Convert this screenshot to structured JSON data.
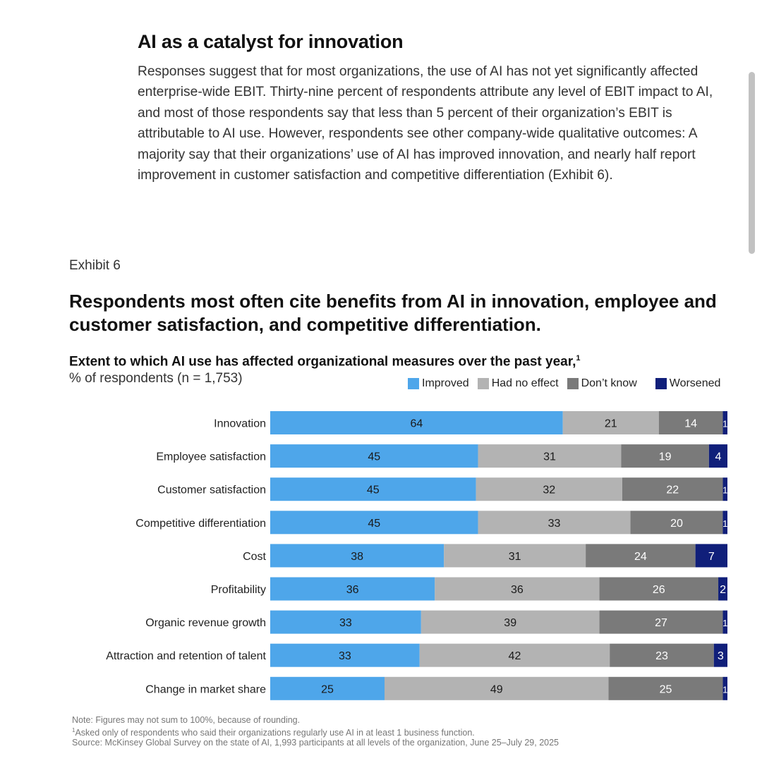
{
  "article": {
    "heading": "AI as a catalyst for innovation",
    "body": "Responses suggest that for most organizations, the use of AI has not yet significantly affected enterprise-wide EBIT. Thirty-nine percent of respondents attribute any level of EBIT impact to AI, and most of those respondents say that less than 5 percent of their organization’s EBIT is attributable to AI use. However, respondents see other company-wide qualitative outcomes: A majority say that their organizations’ use of AI has improved innovation, and nearly half report improvement in customer satisfaction and competitive differentiation (Exhibit 6)."
  },
  "exhibit": {
    "label": "Exhibit 6",
    "title": "Respondents most often cite benefits from AI in innovation, employee and customer satisfaction, and competitive differentiation.",
    "subtitle": "Extent to which AI use has affected organizational measures over the past year,",
    "subtitle_footnote": "1",
    "unit": "% of respondents (n = 1,753)"
  },
  "chart_data": {
    "type": "bar",
    "orientation": "horizontal",
    "stacked": true,
    "legend_position": "top-right",
    "categories": [
      "Innovation",
      "Employee satisfaction",
      "Customer satisfaction",
      "Competitive differentiation",
      "Cost",
      "Profitability",
      "Organic revenue growth",
      "Attraction and retention of talent",
      "Change in market share"
    ],
    "series": [
      {
        "name": "Improved",
        "color": "#4ea6ea",
        "label_color": "#1a1a1a",
        "values": [
          64,
          45,
          45,
          45,
          38,
          36,
          33,
          33,
          25
        ]
      },
      {
        "name": "Had no effect",
        "color": "#b3b3b3",
        "label_color": "#1a1a1a",
        "values": [
          21,
          31,
          32,
          33,
          31,
          36,
          39,
          42,
          49
        ]
      },
      {
        "name": "Don’t know",
        "color": "#7a7a7a",
        "label_color": "#ffffff",
        "values": [
          14,
          19,
          22,
          20,
          24,
          26,
          27,
          23,
          25
        ]
      },
      {
        "name": "Worsened",
        "color": "#101f7a",
        "label_color": "#ffffff",
        "values": [
          1,
          4,
          1,
          1,
          7,
          2,
          1,
          3,
          1
        ]
      }
    ]
  },
  "notes": {
    "note": "Note: Figures may not sum to 100%, because of rounding.",
    "footnote_marker": "1",
    "footnote": "Asked only of respondents who said their organizations regularly use AI in at least 1 business function.",
    "source": "Source: McKinsey Global Survey on the state of AI, 1,993 participants at all levels of the organization, June 25–July 29, 2025"
  }
}
